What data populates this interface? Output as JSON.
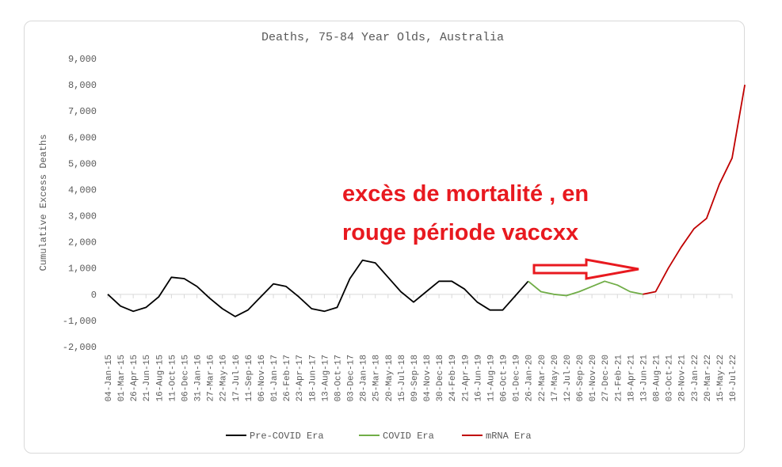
{
  "chart_data": {
    "type": "line",
    "title": "Deaths, 75-84 Year Olds, Australia",
    "xlabel": "",
    "ylabel": "Cumulative Excess Deaths",
    "ylim": [
      -2000,
      9000
    ],
    "yticks": [
      "-2,000",
      "-1,000",
      "0",
      "1,000",
      "2,000",
      "3,000",
      "4,000",
      "5,000",
      "6,000",
      "7,000",
      "8,000",
      "9,000"
    ],
    "xticks": [
      "04-Jan-15",
      "01-Mar-15",
      "26-Apr-15",
      "21-Jun-15",
      "16-Aug-15",
      "11-Oct-15",
      "06-Dec-15",
      "31-Jan-16",
      "27-Mar-16",
      "22-May-16",
      "17-Jul-16",
      "11-Sep-16",
      "06-Nov-16",
      "01-Jan-17",
      "26-Feb-17",
      "23-Apr-17",
      "18-Jun-17",
      "13-Aug-17",
      "08-Oct-17",
      "03-Dec-17",
      "28-Jan-18",
      "25-Mar-18",
      "20-May-18",
      "15-Jul-18",
      "09-Sep-18",
      "04-Nov-18",
      "30-Dec-18",
      "24-Feb-19",
      "21-Apr-19",
      "16-Jun-19",
      "11-Aug-19",
      "06-Oct-19",
      "01-Dec-19",
      "26-Jan-20",
      "22-Mar-20",
      "17-May-20",
      "12-Jul-20",
      "06-Sep-20",
      "01-Nov-20",
      "27-Dec-20",
      "21-Feb-21",
      "18-Apr-21",
      "13-Jun-21",
      "08-Aug-21",
      "03-Oct-21",
      "28-Nov-21",
      "23-Jan-22",
      "20-Mar-22",
      "15-May-22",
      "10-Jul-22"
    ],
    "grid": false,
    "legend_position": "bottom",
    "series": [
      {
        "name": "Pre-COVID Era",
        "color": "#000000",
        "x": [
          0,
          1,
          2,
          3,
          4,
          5,
          6,
          7,
          8,
          9,
          10,
          11,
          12,
          13,
          14,
          15,
          16,
          17,
          18,
          19,
          20,
          21,
          22,
          23,
          24,
          25,
          26,
          27,
          28,
          29,
          30,
          31,
          32,
          33
        ],
        "values": [
          0,
          -450,
          -650,
          -500,
          -100,
          650,
          600,
          300,
          -150,
          -550,
          -850,
          -600,
          -100,
          400,
          300,
          -100,
          -550,
          -650,
          -500,
          600,
          1300,
          1200,
          650,
          100,
          -300,
          100,
          500,
          500,
          200,
          -300,
          -600,
          -600,
          -50,
          500
        ]
      },
      {
        "name": "COVID Era",
        "color": "#70ad47",
        "x": [
          33,
          34,
          35,
          36,
          37,
          38,
          39,
          40,
          41,
          42
        ],
        "values": [
          500,
          100,
          0,
          -50,
          100,
          300,
          500,
          350,
          100,
          0
        ]
      },
      {
        "name": "mRNA Era",
        "color": "#c00000",
        "x": [
          42,
          43,
          44,
          45,
          46,
          47,
          48,
          49,
          50
        ],
        "values": [
          0,
          100,
          1000,
          1800,
          2500,
          2900,
          4200,
          5200,
          8000
        ]
      }
    ]
  },
  "annotation": {
    "line1": "excès de mortalité , en",
    "line2": "rouge période vaccxx",
    "color": "#e8191f"
  }
}
